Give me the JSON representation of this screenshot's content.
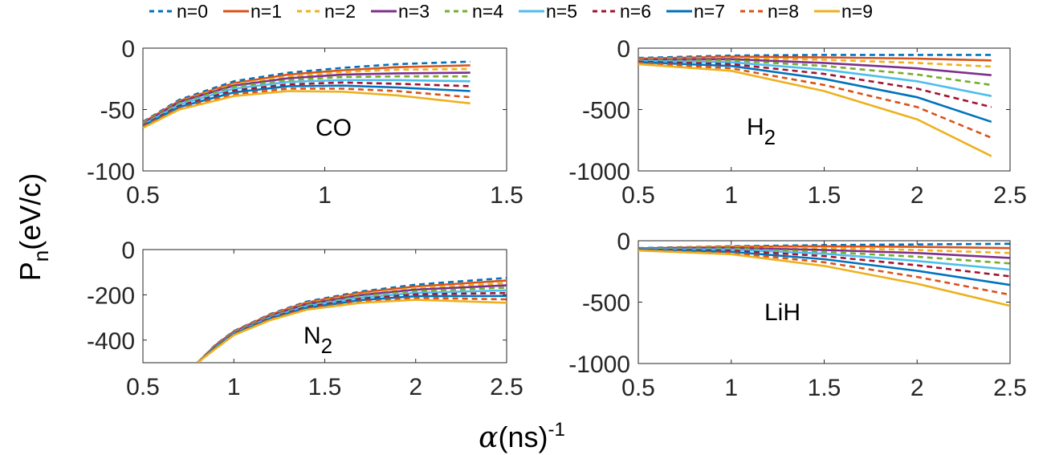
{
  "legend": [
    "n=0",
    "n=1",
    "n=2",
    "n=3",
    "n=4",
    "n=5",
    "n=6",
    "n=7",
    "n=8",
    "n=9"
  ],
  "series_styles": [
    {
      "color": "#0072BD",
      "dash": true
    },
    {
      "color": "#D95319",
      "dash": false
    },
    {
      "color": "#EDB120",
      "dash": true
    },
    {
      "color": "#7E2F8E",
      "dash": false
    },
    {
      "color": "#77AC30",
      "dash": true
    },
    {
      "color": "#4DBEEE",
      "dash": false
    },
    {
      "color": "#A2142F",
      "dash": true
    },
    {
      "color": "#0072BD",
      "dash": false
    },
    {
      "color": "#D95319",
      "dash": true
    },
    {
      "color": "#EDB120",
      "dash": false
    }
  ],
  "axis_labels": {
    "y_main": "P",
    "y_sub": "n",
    "y_unit": "(eV/c)",
    "x_alpha": "α",
    "x_unit": "(ns)",
    "x_sup": "-1"
  },
  "chart_data": [
    {
      "type": "line",
      "molecule": "CO",
      "molecule_sub": "",
      "xlim": [
        0.5,
        1.5
      ],
      "ylim": [
        -100,
        0
      ],
      "xticks": [
        0.5,
        1,
        1.5
      ],
      "xtick_labels": [
        "0.5",
        "1",
        "1.5"
      ],
      "yticks": [
        -100,
        -50,
        0
      ],
      "ytick_labels": [
        "-100",
        "-50",
        "0"
      ],
      "x": [
        0.5,
        0.6,
        0.75,
        0.9,
        1.05,
        1.2,
        1.4
      ],
      "series": [
        {
          "name": "n=0",
          "values": [
            -60,
            -42,
            -27,
            -20,
            -16,
            -13,
            -11
          ]
        },
        {
          "name": "n=1",
          "values": [
            -60.5,
            -43,
            -28.5,
            -21.5,
            -18,
            -15.5,
            -14
          ]
        },
        {
          "name": "n=2",
          "values": [
            -61,
            -43.5,
            -29.5,
            -23,
            -19.5,
            -17.5,
            -17
          ]
        },
        {
          "name": "n=3",
          "values": [
            -61.5,
            -44,
            -30.5,
            -24.5,
            -21.5,
            -20.5,
            -20
          ]
        },
        {
          "name": "n=4",
          "values": [
            -62,
            -45,
            -31.5,
            -26,
            -23.5,
            -23,
            -23
          ]
        },
        {
          "name": "n=5",
          "values": [
            -62.5,
            -46,
            -33,
            -27.5,
            -26,
            -26,
            -27
          ]
        },
        {
          "name": "n=6",
          "values": [
            -63,
            -47,
            -34.5,
            -29.5,
            -28,
            -29,
            -31
          ]
        },
        {
          "name": "n=7",
          "values": [
            -63.5,
            -48,
            -36,
            -31,
            -30.5,
            -32,
            -35
          ]
        },
        {
          "name": "n=8",
          "values": [
            -64,
            -49,
            -37.5,
            -33,
            -33,
            -35,
            -40
          ]
        },
        {
          "name": "n=9",
          "values": [
            -65,
            -50,
            -39,
            -35,
            -35.5,
            -38.5,
            -45
          ]
        }
      ]
    },
    {
      "type": "line",
      "molecule": "H",
      "molecule_sub": "2",
      "xlim": [
        0.5,
        2.5
      ],
      "ylim": [
        -1000,
        0
      ],
      "xticks": [
        0.5,
        1,
        1.5,
        2,
        2.5
      ],
      "xtick_labels": [
        "0.5",
        "1",
        "1.5",
        "2",
        "2.5"
      ],
      "yticks": [
        -1000,
        -500,
        0
      ],
      "ytick_labels": [
        "-1000",
        "-500",
        "0"
      ],
      "x": [
        0.5,
        1.0,
        1.5,
        2.0,
        2.4
      ],
      "series": [
        {
          "name": "n=0",
          "values": [
            -80,
            -60,
            -55,
            -55,
            -55
          ]
        },
        {
          "name": "n=1",
          "values": [
            -85,
            -70,
            -75,
            -85,
            -100
          ]
        },
        {
          "name": "n=2",
          "values": [
            -90,
            -80,
            -95,
            -120,
            -150
          ]
        },
        {
          "name": "n=3",
          "values": [
            -95,
            -90,
            -120,
            -165,
            -220
          ]
        },
        {
          "name": "n=4",
          "values": [
            -100,
            -100,
            -145,
            -215,
            -300
          ]
        },
        {
          "name": "n=5",
          "values": [
            -105,
            -115,
            -175,
            -270,
            -390
          ]
        },
        {
          "name": "n=6",
          "values": [
            -110,
            -130,
            -210,
            -330,
            -480
          ]
        },
        {
          "name": "n=7",
          "values": [
            -115,
            -145,
            -250,
            -400,
            -600
          ]
        },
        {
          "name": "n=8",
          "values": [
            -120,
            -165,
            -300,
            -480,
            -730
          ]
        },
        {
          "name": "n=9",
          "values": [
            -130,
            -185,
            -350,
            -580,
            -880
          ]
        }
      ]
    },
    {
      "type": "line",
      "molecule": "N",
      "molecule_sub": "2",
      "xlim": [
        0.5,
        2.5
      ],
      "ylim": [
        -500,
        0
      ],
      "xticks": [
        0.5,
        1,
        1.5,
        2,
        2.5
      ],
      "xtick_labels": [
        "0.5",
        "1",
        "1.5",
        "2",
        "2.5"
      ],
      "yticks": [
        -400,
        -200,
        0
      ],
      "ytick_labels": [
        "-400",
        "-200",
        "0"
      ],
      "x": [
        0.8,
        0.9,
        1.0,
        1.2,
        1.4,
        1.7,
        2.0,
        2.5
      ],
      "series": [
        {
          "name": "n=0",
          "values": [
            -500,
            -420,
            -360,
            -285,
            -230,
            -185,
            -155,
            -125
          ]
        },
        {
          "name": "n=1",
          "values": [
            -500,
            -422,
            -362,
            -288,
            -234,
            -190,
            -163,
            -137
          ]
        },
        {
          "name": "n=2",
          "values": [
            -500,
            -424,
            -364,
            -291,
            -238,
            -196,
            -170,
            -148
          ]
        },
        {
          "name": "n=3",
          "values": [
            -500,
            -426,
            -366,
            -294,
            -242,
            -201,
            -177,
            -158
          ]
        },
        {
          "name": "n=4",
          "values": [
            -500,
            -428,
            -368,
            -297,
            -246,
            -206,
            -184,
            -168
          ]
        },
        {
          "name": "n=5",
          "values": [
            -500,
            -430,
            -370,
            -300,
            -250,
            -212,
            -191,
            -180
          ]
        },
        {
          "name": "n=6",
          "values": [
            -500,
            -432,
            -372,
            -303,
            -254,
            -217,
            -198,
            -192
          ]
        },
        {
          "name": "n=7",
          "values": [
            -500,
            -434,
            -374,
            -306,
            -258,
            -223,
            -206,
            -205
          ]
        },
        {
          "name": "n=8",
          "values": [
            -500,
            -436,
            -376,
            -309,
            -262,
            -229,
            -214,
            -220
          ]
        },
        {
          "name": "n=9",
          "values": [
            -500,
            -438,
            -378,
            -312,
            -266,
            -235,
            -222,
            -235
          ]
        }
      ]
    },
    {
      "type": "line",
      "molecule": "LiH",
      "molecule_sub": "",
      "xlim": [
        0.5,
        2.5
      ],
      "ylim": [
        -1000,
        0
      ],
      "xticks": [
        0.5,
        1,
        1.5,
        2,
        2.5
      ],
      "xtick_labels": [
        "0.5",
        "1",
        "1.5",
        "2",
        "2.5"
      ],
      "yticks": [
        -1000,
        -500,
        0
      ],
      "ytick_labels": [
        "-1000",
        "-500",
        "0"
      ],
      "x": [
        0.5,
        1.0,
        1.5,
        2.0,
        2.5
      ],
      "series": [
        {
          "name": "n=0",
          "values": [
            -60,
            -45,
            -35,
            -30,
            -25
          ]
        },
        {
          "name": "n=1",
          "values": [
            -62,
            -50,
            -45,
            -50,
            -60
          ]
        },
        {
          "name": "n=2",
          "values": [
            -64,
            -55,
            -60,
            -75,
            -100
          ]
        },
        {
          "name": "n=3",
          "values": [
            -66,
            -60,
            -75,
            -100,
            -140
          ]
        },
        {
          "name": "n=4",
          "values": [
            -68,
            -65,
            -90,
            -130,
            -185
          ]
        },
        {
          "name": "n=5",
          "values": [
            -70,
            -72,
            -105,
            -165,
            -235
          ]
        },
        {
          "name": "n=6",
          "values": [
            -72,
            -80,
            -125,
            -200,
            -290
          ]
        },
        {
          "name": "n=7",
          "values": [
            -74,
            -90,
            -150,
            -245,
            -360
          ]
        },
        {
          "name": "n=8",
          "values": [
            -77,
            -100,
            -175,
            -295,
            -440
          ]
        },
        {
          "name": "n=9",
          "values": [
            -80,
            -110,
            -205,
            -350,
            -530
          ]
        }
      ]
    }
  ]
}
